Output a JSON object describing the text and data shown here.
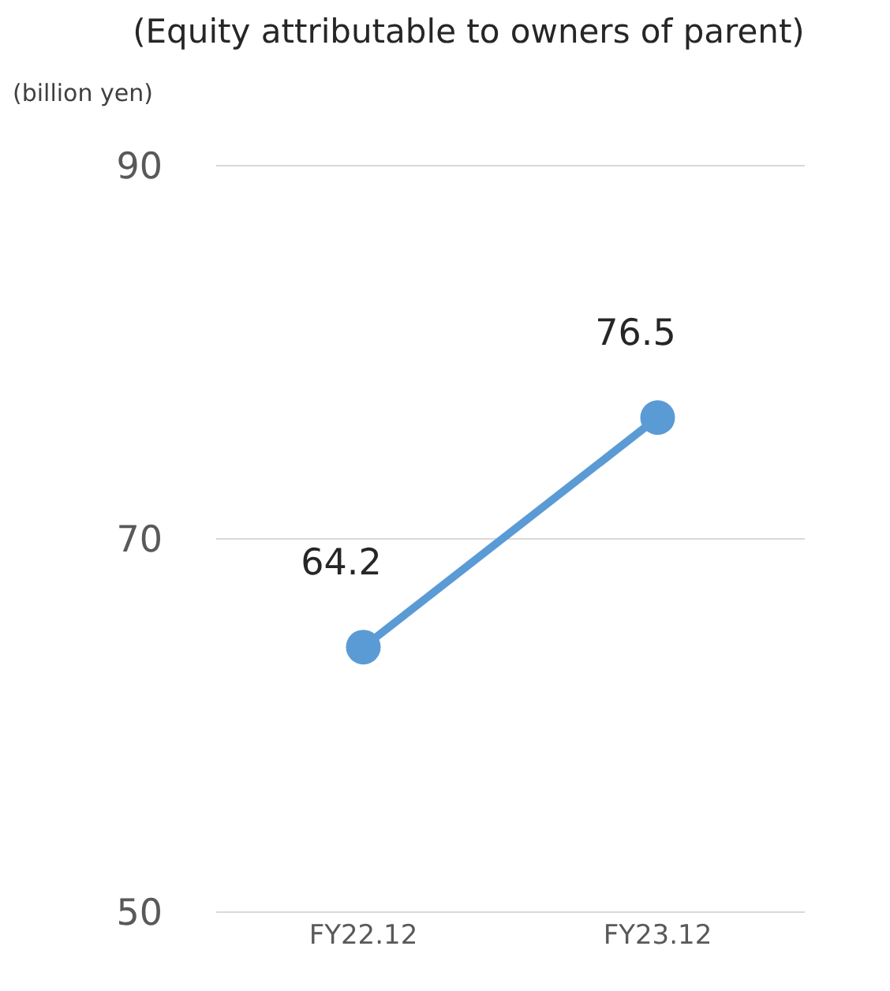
{
  "chart_data": {
    "type": "line",
    "title": "(Equity attributable to owners of parent)",
    "ylabel": "(billion yen)",
    "categories": [
      "FY22.12",
      "FY23.12"
    ],
    "series": [
      {
        "color": "#5b9bd5",
        "values": [
          64.2,
          76.5
        ]
      }
    ],
    "ylim": [
      50,
      90
    ],
    "yticks": [
      50,
      70,
      90
    ],
    "grid": "y",
    "marker": "circle",
    "line_style": "solid",
    "data_labels": true,
    "legend": false
  }
}
